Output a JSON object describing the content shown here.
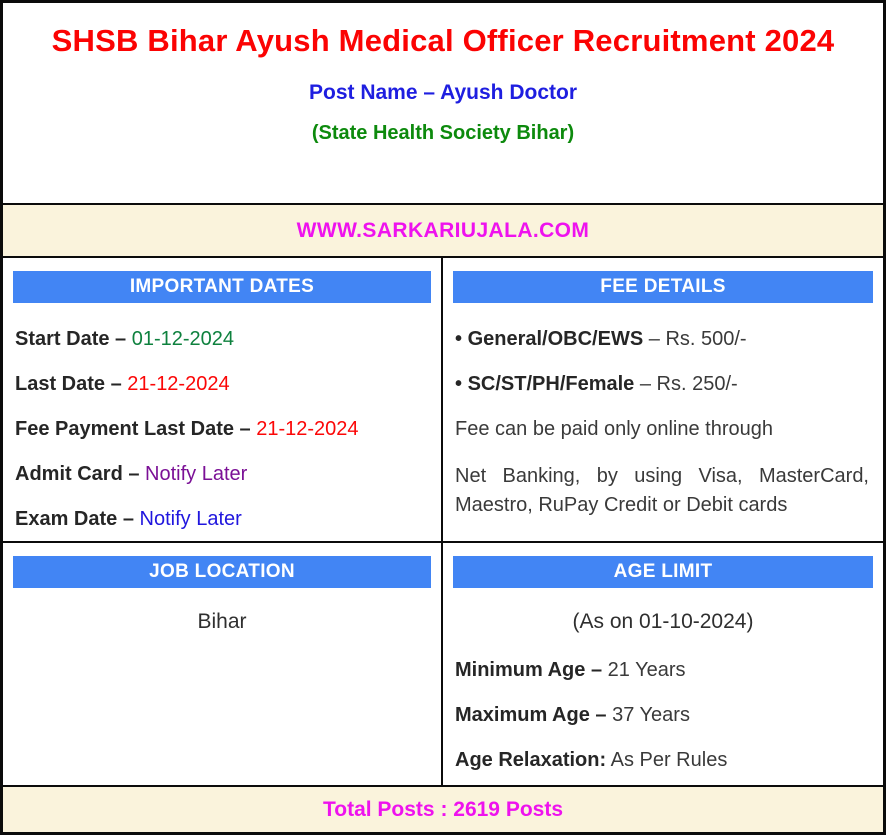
{
  "header": {
    "title": "SHSB Bihar Ayush Medical Officer Recruitment 2024",
    "post_name": "Post Name – Ayush Doctor",
    "society": "(State Health Society Bihar)"
  },
  "banner": {
    "website": "WWW.SARKARIUJALA.COM"
  },
  "important_dates": {
    "heading": "IMPORTANT DATES",
    "items": [
      {
        "label": "Start Date",
        "sep": "–",
        "value": "01-12-2024",
        "color": "#0e813e"
      },
      {
        "label": "Last Date",
        "sep": "–",
        "value": "21-12-2024",
        "color": "#fb0707"
      },
      {
        "label": "Fee Payment Last Date",
        "sep": "–",
        "value": "21-12-2024",
        "color": "#fb0707"
      },
      {
        "label": "Admit Card",
        "sep": "–",
        "value": "Notify Later",
        "color": "#7b1096"
      },
      {
        "label": "Exam Date",
        "sep": "–",
        "value": "Notify Later",
        "color": "#2016de"
      }
    ]
  },
  "fee_details": {
    "heading": "FEE DETAILS",
    "items": [
      {
        "bullet": "•",
        "label": "General/OBC/EWS",
        "sep": "–",
        "value": "Rs. 500/-"
      },
      {
        "bullet": "•",
        "label": "SC/ST/PH/Female",
        "sep": "–",
        "value": "Rs. 250/-"
      }
    ],
    "note1": "Fee can be paid only online through",
    "note2": "Net Banking, by using Visa, MasterCard, Maestro, RuPay Credit or Debit cards"
  },
  "job_location": {
    "heading": "JOB LOCATION",
    "value": "Bihar"
  },
  "age_limit": {
    "heading": "AGE LIMIT",
    "as_on": "(As on 01-10-2024)",
    "items": [
      {
        "label": "Minimum Age",
        "sep": "–",
        "value": "21 Years"
      },
      {
        "label": "Maximum Age",
        "sep": "–",
        "value": "37 Years"
      },
      {
        "label": "Age Relaxation:",
        "sep": "",
        "value": "As Per Rules"
      }
    ]
  },
  "footer": {
    "total_posts": "Total Posts : 2619 Posts"
  },
  "colors": {
    "section_bar_blue": "#4285f4",
    "banner_cream": "#faf3dc",
    "site_magenta": "#ee12ee",
    "title_red": "#fb0303",
    "post_name_blue": "#1e1ee0",
    "society_green": "#0d8a0d",
    "date_green": "#0e813e",
    "date_red": "#fb0707",
    "notify_purple": "#7b1096",
    "notify_blue": "#2016de",
    "border_black": "#0b0b0b"
  }
}
